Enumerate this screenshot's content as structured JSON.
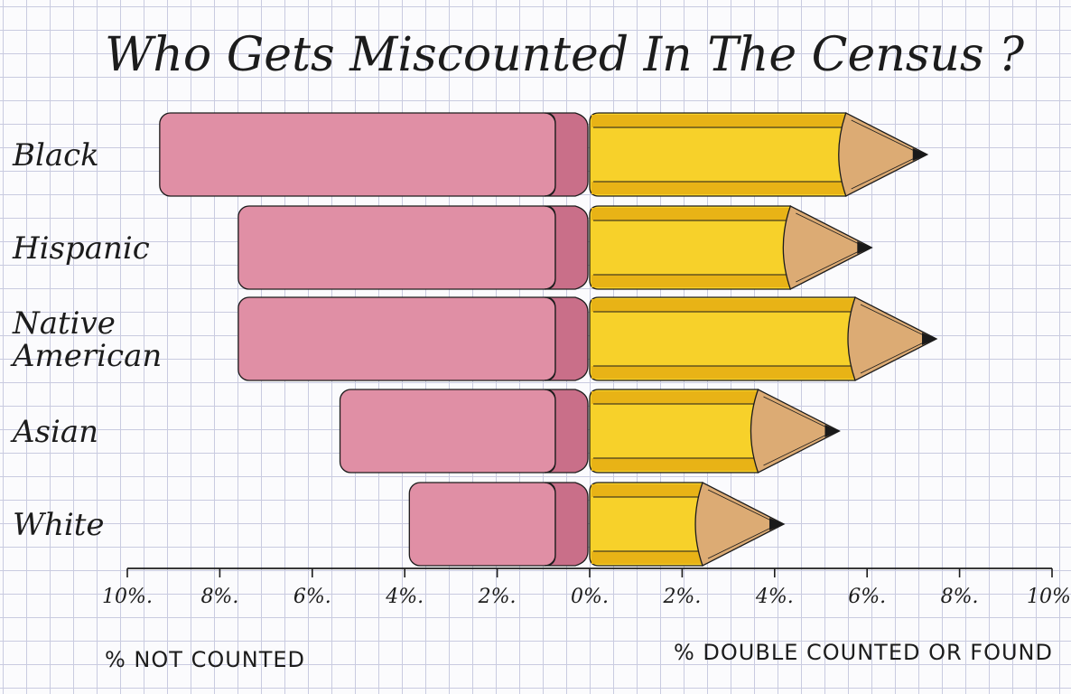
{
  "chart_data": {
    "type": "bar",
    "title": "Who Gets Miscounted In The Census ?",
    "categories": [
      "Black",
      "Hispanic",
      "Native American",
      "Asian",
      "White"
    ],
    "series": [
      {
        "name": "% NOT COUNTED",
        "values": [
          9.3,
          7.6,
          7.6,
          5.4,
          3.9
        ]
      },
      {
        "name": "% DOUBLE COUNTED OR FOUND",
        "values": [
          7.3,
          6.1,
          7.5,
          5.4,
          4.2
        ]
      }
    ],
    "xlim": [
      -10,
      10
    ],
    "x_tick_labels": [
      "10%.",
      "8%.",
      "6%.",
      "4%.",
      "2%.",
      "0%.",
      "2%.",
      "4%.",
      "6%.",
      "8%.",
      "10%."
    ],
    "left_axis_label": "% NOT COUNTED",
    "right_axis_label": "% DOUBLE COUNTED OR FOUND",
    "colors": {
      "eraser": "#e08fa5",
      "eraser_side": "#c96f89",
      "pencil_body": "#f7d12a",
      "pencil_stripe": "#e8b316",
      "pencil_wood": "#dcab74",
      "pencil_lead": "#1a1a1a",
      "ink": "#1c1c1c"
    }
  }
}
